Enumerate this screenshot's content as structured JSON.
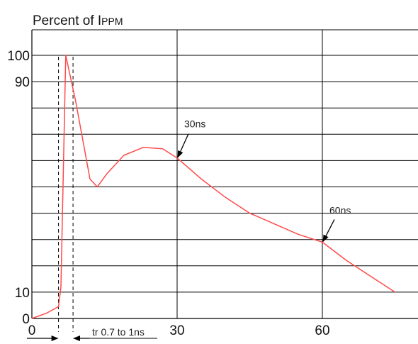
{
  "chart_data": {
    "type": "line",
    "ylabel_main": "Percent of I",
    "ylabel_sub": "PPM",
    "xlim": [
      0,
      75
    ],
    "ylim": [
      0,
      100
    ],
    "x_ticks": [
      {
        "value": 0,
        "label": "0"
      },
      {
        "value": 30,
        "label": "30"
      },
      {
        "value": 60,
        "label": "60"
      }
    ],
    "y_ticks": [
      {
        "value": 0,
        "label": "0"
      },
      {
        "value": 10,
        "label": "10"
      },
      {
        "value": 90,
        "label": "90"
      },
      {
        "value": 100,
        "label": "100"
      }
    ],
    "grid": true,
    "line_color": "#ff4a4a",
    "series": [
      {
        "x": [
          0,
          3,
          5.5,
          6,
          7,
          9,
          12,
          13.5,
          15.5,
          19,
          23,
          27,
          30,
          35,
          40,
          45,
          50,
          55,
          60,
          65,
          70,
          75
        ],
        "y": [
          0,
          2,
          4.5,
          12,
          100,
          83,
          53,
          50,
          55,
          62,
          65,
          64.5,
          61,
          53,
          46,
          40,
          36,
          32,
          29,
          22,
          16,
          10
        ]
      }
    ],
    "reference_lines": [
      {
        "x": 5.5
      },
      {
        "x": 8.5
      }
    ],
    "annotations": [
      {
        "text": "30ns",
        "x": 30,
        "y": 61
      },
      {
        "text": "60ns",
        "x": 60,
        "y": 29
      },
      {
        "text": "tr 0.7 to 1ns"
      }
    ]
  }
}
